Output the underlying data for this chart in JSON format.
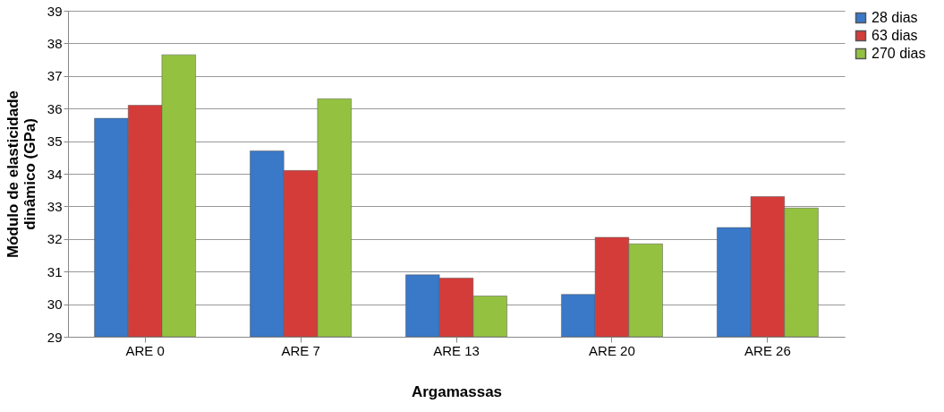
{
  "chart_data": {
    "type": "bar",
    "xlabel": "Argamassas",
    "ylabel": "Módulo de elasticidade dinâmico (GPa)",
    "categories": [
      "ARE 0",
      "ARE 7",
      "ARE 13",
      "ARE 20",
      "ARE 26"
    ],
    "series": [
      {
        "name": "28 dias",
        "color": "#3a78c8",
        "values": [
          35.7,
          34.7,
          30.9,
          30.3,
          32.35
        ]
      },
      {
        "name": "63 dias",
        "color": "#d43c3a",
        "values": [
          36.1,
          34.1,
          30.8,
          32.05,
          33.3
        ]
      },
      {
        "name": "270 dias",
        "color": "#94c240",
        "values": [
          37.65,
          36.3,
          30.25,
          31.85,
          32.95
        ]
      }
    ],
    "ylim": [
      29,
      39
    ],
    "yticks": [
      29,
      30,
      31,
      32,
      33,
      34,
      35,
      36,
      37,
      38,
      39
    ],
    "grid": "y",
    "legend": "top right"
  }
}
